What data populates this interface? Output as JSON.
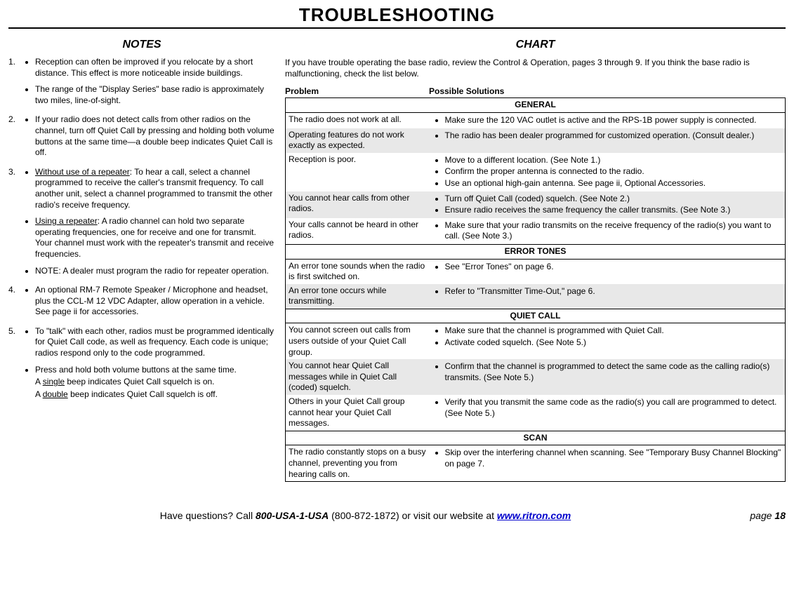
{
  "page": {
    "title": "TROUBLESHOOTING",
    "footer_q": "Have questions?  Call ",
    "footer_phone_bold": "800-USA-1-USA",
    "footer_phone_paren": " (800-872-1872) or visit our website at ",
    "footer_url": "www.ritron.com",
    "footer_page_label": "page ",
    "footer_page_num": "18"
  },
  "notes": {
    "heading": "NOTES",
    "items": [
      {
        "num": "1.",
        "bullets": [
          "Reception can often be improved if you relocate by a short distance. This effect is more noticeable inside buildings.",
          "The range of the \"Display Series\" base radio is approximately two miles, line-of-sight."
        ]
      },
      {
        "num": "2.",
        "bullets": [
          "If your radio does not detect calls from other radios on the channel, turn off Quiet Call by pressing and holding both volume buttons at the same time—a double beep indicates Quiet Call is off."
        ]
      },
      {
        "num": "3.",
        "bullets": [
          "__U__Without use of a repeater__/U__: To hear a call, select a channel programmed to receive the caller's transmit frequency. To call another unit, select a channel programmed to transmit the other radio's receive frequency.",
          "__U__Using a repeater__/U__: A radio channel can hold two separate operating frequencies, one for receive and one for transmit. Your channel must work with the repeater's transmit and receive frequencies.",
          "NOTE: A dealer must program the radio for repeater operation."
        ]
      },
      {
        "num": "4.",
        "bullets": [
          "An optional RM-7 Remote Speaker / Microphone and headset, plus the CCL-M 12 VDC Adapter, allow operation in a vehicle. See page ii for accessories."
        ]
      },
      {
        "num": "5.",
        "bullets": [
          "To \"talk\" with each other, radios must be programmed identically for Quiet Call code, as well as frequency. Each code is unique; radios respond only to the code programmed.",
          "Press and hold both volume buttons at the same time.__BR__A __U__single__/U__ beep indicates Quiet Call squelch is on.__BR__A __U__double__/U__ beep indicates Quiet Call squelch is off."
        ]
      }
    ]
  },
  "chart": {
    "heading": "CHART",
    "intro": "If you have trouble operating the base radio, review the Control & Operation, pages 3 through 9. If you think the base radio is malfunctioning, check the list below.",
    "col_problem": "Problem",
    "col_solutions": "Possible Solutions",
    "sections": [
      {
        "title": "GENERAL",
        "rows": [
          {
            "shade": false,
            "problem": "The radio does not work at all.",
            "solutions": [
              "Make sure the 120 VAC outlet is active and the RPS-1B power supply is connected."
            ]
          },
          {
            "shade": true,
            "problem": "Operating features do not work exactly as expected.",
            "solutions": [
              "The radio has been dealer programmed for customized operation. (Consult dealer.)"
            ]
          },
          {
            "shade": false,
            "problem": "Reception is poor.",
            "solutions": [
              "Move to a different location. (See Note 1.)",
              "Confirm the proper antenna is connected to the radio.",
              "Use an optional high-gain antenna. See page ii, Optional Accessories."
            ]
          },
          {
            "shade": true,
            "problem": "You cannot hear calls from other radios.",
            "solutions": [
              "Turn off Quiet Call (coded) squelch. (See Note 2.)",
              "Ensure radio receives the same frequency the caller transmits. (See Note 3.)"
            ]
          },
          {
            "shade": false,
            "problem": "Your calls cannot be heard in other radios.",
            "solutions": [
              "Make sure that your radio transmits on the receive frequency of the radio(s) you want to call. (See Note 3.)"
            ]
          }
        ]
      },
      {
        "title": "ERROR TONES",
        "rows": [
          {
            "shade": false,
            "problem": "An error tone sounds when the radio is first switched on.",
            "solutions": [
              "See \"Error Tones\" on page 6."
            ]
          },
          {
            "shade": true,
            "problem": "An error tone occurs while transmitting.",
            "solutions": [
              "Refer to \"Transmitter Time-Out,\" page 6."
            ]
          }
        ]
      },
      {
        "title": "QUIET CALL",
        "rows": [
          {
            "shade": false,
            "problem": "You cannot screen out calls from users outside of your Quiet Call group.",
            "solutions": [
              "Make sure that the channel is programmed with Quiet Call.",
              "Activate coded squelch. (See Note 5.)"
            ]
          },
          {
            "shade": true,
            "problem": "You cannot hear Quiet Call messages while in Quiet Call (coded) squelch.",
            "solutions": [
              "Confirm that the channel is programmed to detect the same code as the calling radio(s) transmits. (See Note 5.)"
            ]
          },
          {
            "shade": false,
            "problem": "Others in your Quiet Call group cannot hear your Quiet Call messages.",
            "solutions": [
              "Verify that you transmit the same code as the radio(s) you call are programmed to detect. (See Note 5.)"
            ]
          }
        ]
      },
      {
        "title": "SCAN",
        "rows": [
          {
            "shade": false,
            "problem": "The radio constantly stops on a busy channel, preventing you from hearing calls on.",
            "solutions": [
              "Skip over the interfering channel when scanning. See \"Temporary Busy Channel Blocking\" on page 7."
            ]
          }
        ]
      }
    ]
  }
}
